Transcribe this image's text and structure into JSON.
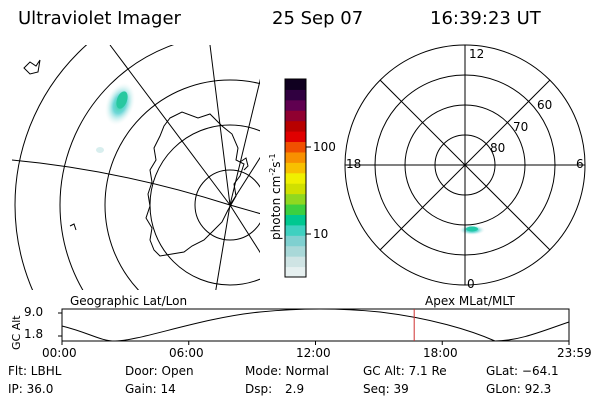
{
  "header": {
    "instrument": "Ultraviolet Imager",
    "date": "25 Sep 07",
    "time": "16:39:23 UT"
  },
  "left_map": {
    "label": "Geographic Lat/Lon"
  },
  "right_map": {
    "label": "Apex MLat/MLT",
    "mlt_labels": {
      "top": "12",
      "left": "18",
      "right": "6",
      "bottom": "0"
    },
    "lat_labels": [
      "60",
      "70",
      "80"
    ]
  },
  "colorbar": {
    "unit_text": "photon cm",
    "unit_exp1": "-2",
    "unit_s": "s",
    "unit_exp2": "-1",
    "ticks": [
      "100",
      "10"
    ],
    "colors": [
      "#e6f0f0",
      "#cfe4e4",
      "#a9d8d8",
      "#7fd0d0",
      "#3fd0c0",
      "#00c890",
      "#3cd040",
      "#90d820",
      "#d0e000",
      "#f0f000",
      "#f8c000",
      "#f89000",
      "#f05000",
      "#e00000",
      "#b80000",
      "#900030",
      "#600050",
      "#300040",
      "#100020"
    ]
  },
  "altitude_strip": {
    "axis_label": "GC Alt",
    "y_max": "9.0",
    "y_min": "1.8",
    "time_ticks": [
      "00:00",
      "06:00",
      "12:00",
      "18:00",
      "23:59"
    ],
    "current_time_hours": 16.66,
    "marker_color": "#d03030"
  },
  "info": {
    "flt": "Flt: LBHL",
    "door": "Door: Open",
    "mode": "Mode: Normal",
    "gc_alt": "GC Alt: 7.1 Re",
    "glat": "GLat: −64.1",
    "ip": "IP: 36.0",
    "gain": "Gain: 14",
    "dsp_label": "Dsp:",
    "dsp_value": "2.9",
    "seq": "Seq: 39",
    "glon": "GLon:  92.3"
  }
}
